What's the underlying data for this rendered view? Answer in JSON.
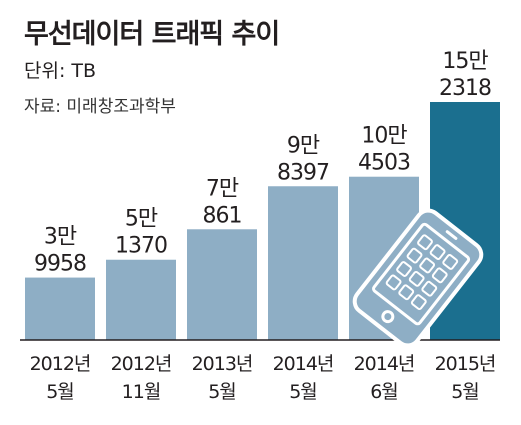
{
  "title": "무선데이터 트래픽 추이",
  "unit": "단위: TB",
  "source": "자료: 미래창조과학부",
  "colors": {
    "bar": "#8eaec5",
    "highlight": "#1b6f8f",
    "axis": "#231f20"
  },
  "icon": "smartphone-icon",
  "chart_data": {
    "type": "bar",
    "title": "무선데이터 트래픽 추이",
    "xlabel": "",
    "ylabel": "",
    "ylim": [
      0,
      160000
    ],
    "grid": false,
    "categories": [
      "2012년 5월",
      "2012년 11월",
      "2013년 5월",
      "2014년 5월",
      "2014년 6월",
      "2015년 5월"
    ],
    "tick_labels": [
      [
        "2012년",
        "5월"
      ],
      [
        "2012년",
        "11월"
      ],
      [
        "2013년",
        "5월"
      ],
      [
        "2014년",
        "5월"
      ],
      [
        "2014년",
        "6월"
      ],
      [
        "2015년",
        "5월"
      ]
    ],
    "values": [
      39958,
      51370,
      70861,
      98397,
      104503,
      152318
    ],
    "value_labels": [
      [
        "3만",
        "9958"
      ],
      [
        "5만",
        "1370"
      ],
      [
        "7만",
        "861"
      ],
      [
        "9만",
        "8397"
      ],
      [
        "10만",
        "4503"
      ],
      [
        "15만",
        "2318"
      ]
    ],
    "highlight_index": 5
  }
}
